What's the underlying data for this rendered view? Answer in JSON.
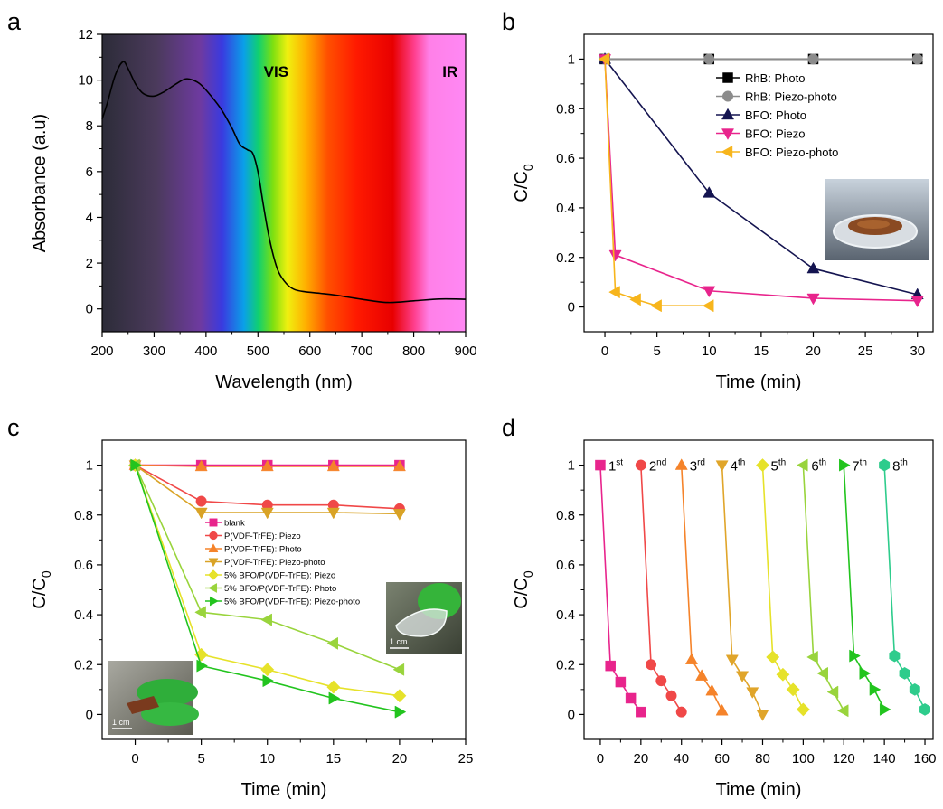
{
  "panel_labels": [
    "a",
    "b",
    "c",
    "d"
  ],
  "chart_data": [
    {
      "id": "a",
      "type": "line",
      "xlabel": "Wavelength (nm)",
      "ylabel": "Absorbance (a.u)",
      "xlim": [
        200,
        900
      ],
      "ylim": [
        -1,
        12
      ],
      "xticks": [
        200,
        300,
        400,
        500,
        600,
        700,
        800,
        900
      ],
      "yticks": [
        0,
        2,
        4,
        6,
        8,
        10,
        12
      ],
      "annotations": [
        "VIS",
        "IR"
      ],
      "background": "visible spectrum color gradient",
      "series": [
        {
          "color": "#000000",
          "x": [
            200,
            210,
            225,
            240,
            250,
            265,
            280,
            300,
            320,
            340,
            360,
            375,
            390,
            410,
            430,
            450,
            465,
            480,
            490,
            500,
            510,
            520,
            530,
            540,
            555,
            570,
            590,
            620,
            650,
            700,
            750,
            800,
            850,
            900
          ],
          "y": [
            8.3,
            9.0,
            10.2,
            10.8,
            10.5,
            9.8,
            9.4,
            9.3,
            9.5,
            9.8,
            10.05,
            10.0,
            9.8,
            9.3,
            8.7,
            7.9,
            7.2,
            6.95,
            6.8,
            6.0,
            4.6,
            3.3,
            2.3,
            1.6,
            1.1,
            0.85,
            0.75,
            0.68,
            0.6,
            0.42,
            0.28,
            0.35,
            0.43,
            0.42
          ]
        }
      ]
    },
    {
      "id": "b",
      "type": "line",
      "xlabel": "Time (min)",
      "ylabel": "C/C0",
      "xlim": [
        -2,
        31.5
      ],
      "ylim": [
        -0.1,
        1.1
      ],
      "xticks": [
        0,
        5,
        10,
        15,
        20,
        25,
        30
      ],
      "yticks": [
        0.0,
        0.2,
        0.4,
        0.6,
        0.8,
        1.0
      ],
      "legend_position": "top-right",
      "series": [
        {
          "name": "RhB: Photo",
          "color": "#000000",
          "marker": "square",
          "x": [
            0,
            10,
            20,
            30
          ],
          "y": [
            1.0,
            1.0,
            1.0,
            1.0
          ]
        },
        {
          "name": "RhB: Piezo-photo",
          "color": "#8c8c8c",
          "marker": "circle",
          "x": [
            0,
            10,
            20,
            30
          ],
          "y": [
            1.0,
            1.0,
            1.0,
            1.0
          ]
        },
        {
          "name": "BFO: Photo",
          "color": "#141450",
          "marker": "triangle-up",
          "x": [
            0,
            10,
            20,
            30
          ],
          "y": [
            1.0,
            0.46,
            0.155,
            0.05
          ]
        },
        {
          "name": "BFO: Piezo",
          "color": "#e8248c",
          "marker": "triangle-down",
          "x": [
            0,
            1,
            10,
            20,
            30
          ],
          "y": [
            1.0,
            0.21,
            0.065,
            0.035,
            0.025
          ]
        },
        {
          "name": "BFO: Piezo-photo",
          "color": "#f7b51c",
          "marker": "triangle-left",
          "x": [
            0,
            1,
            3,
            5,
            10
          ],
          "y": [
            1.0,
            0.06,
            0.03,
            0.005,
            0.005
          ]
        }
      ]
    },
    {
      "id": "c",
      "type": "line",
      "xlabel": "Time (min)",
      "ylabel": "C/C0",
      "xlim": [
        -2.5,
        25
      ],
      "ylim": [
        -0.1,
        1.1
      ],
      "xticks": [
        0,
        5,
        10,
        15,
        20,
        25
      ],
      "yticks": [
        0.0,
        0.2,
        0.4,
        0.6,
        0.8,
        1.0
      ],
      "legend_position": "center",
      "inset_labels": [
        "1 cm",
        "1 cm"
      ],
      "series": [
        {
          "name": "blank",
          "color": "#e8248c",
          "marker": "square",
          "x": [
            0,
            5,
            10,
            15,
            20
          ],
          "y": [
            1.0,
            1.0,
            1.0,
            1.0,
            1.0
          ]
        },
        {
          "name": "P(VDF-TrFE): Piezo",
          "color": "#f04848",
          "marker": "circle",
          "x": [
            0,
            5,
            10,
            15,
            20
          ],
          "y": [
            1.0,
            0.855,
            0.84,
            0.84,
            0.825
          ]
        },
        {
          "name": "P(VDF-TrFE): Photo",
          "color": "#f5832a",
          "marker": "triangle-up",
          "x": [
            0,
            5,
            10,
            15,
            20
          ],
          "y": [
            1.0,
            0.995,
            0.995,
            0.995,
            0.995
          ]
        },
        {
          "name": "P(VDF-TrFE): Piezo-photo",
          "color": "#d9a326",
          "marker": "triangle-down",
          "x": [
            0,
            5,
            10,
            15,
            20
          ],
          "y": [
            1.0,
            0.81,
            0.81,
            0.81,
            0.805
          ]
        },
        {
          "name": "5% BFO/P(VDF-TrFE): Piezo",
          "color": "#e6e22a",
          "marker": "diamond",
          "x": [
            0,
            5,
            10,
            15,
            20
          ],
          "y": [
            1.0,
            0.24,
            0.18,
            0.11,
            0.075
          ]
        },
        {
          "name": "5% BFO/P(VDF-TrFE): Photo",
          "color": "#99d43c",
          "marker": "triangle-left",
          "x": [
            0,
            5,
            10,
            15,
            20
          ],
          "y": [
            1.0,
            0.41,
            0.38,
            0.285,
            0.18
          ]
        },
        {
          "name": "5% BFO/P(VDF-TrFE): Piezo-photo",
          "color": "#22c41e",
          "marker": "triangle-right",
          "x": [
            0,
            5,
            10,
            15,
            20
          ],
          "y": [
            1.0,
            0.195,
            0.135,
            0.065,
            0.01
          ]
        }
      ]
    },
    {
      "id": "d",
      "type": "line",
      "xlabel": "Time (min)",
      "ylabel": "C/C0",
      "xlim": [
        -8,
        164
      ],
      "ylim": [
        -0.1,
        1.1
      ],
      "xticks": [
        0,
        20,
        40,
        60,
        80,
        100,
        120,
        140,
        160
      ],
      "yticks": [
        0.0,
        0.2,
        0.4,
        0.6,
        0.8,
        1.0
      ],
      "series": [
        {
          "name": "1st",
          "color": "#e8248c",
          "marker": "square",
          "x": [
            0,
            5,
            10,
            15,
            20
          ],
          "y": [
            1.0,
            0.195,
            0.13,
            0.065,
            0.01
          ]
        },
        {
          "name": "2nd",
          "color": "#f04848",
          "marker": "circle",
          "x": [
            20,
            25,
            30,
            35,
            40
          ],
          "y": [
            1.0,
            0.2,
            0.135,
            0.075,
            0.01
          ]
        },
        {
          "name": "3rd",
          "color": "#f5832a",
          "marker": "triangle-up",
          "x": [
            40,
            45,
            50,
            55,
            60
          ],
          "y": [
            1.0,
            0.22,
            0.155,
            0.095,
            0.015
          ]
        },
        {
          "name": "4th",
          "color": "#e0a52a",
          "marker": "triangle-down",
          "x": [
            60,
            65,
            70,
            75,
            80
          ],
          "y": [
            1.0,
            0.22,
            0.155,
            0.09,
            0.0
          ]
        },
        {
          "name": "5th",
          "color": "#e6e22a",
          "marker": "diamond",
          "x": [
            80,
            85,
            90,
            95,
            100
          ],
          "y": [
            1.0,
            0.23,
            0.16,
            0.1,
            0.02
          ]
        },
        {
          "name": "6th",
          "color": "#99d43c",
          "marker": "triangle-left",
          "x": [
            100,
            105,
            110,
            115,
            120
          ],
          "y": [
            1.0,
            0.23,
            0.165,
            0.09,
            0.015
          ]
        },
        {
          "name": "7th",
          "color": "#22c41e",
          "marker": "triangle-right",
          "x": [
            120,
            125,
            130,
            135,
            140
          ],
          "y": [
            1.0,
            0.235,
            0.165,
            0.1,
            0.02
          ]
        },
        {
          "name": "8th",
          "color": "#2ecc8c",
          "marker": "hexagon",
          "x": [
            140,
            145,
            150,
            155,
            160
          ],
          "y": [
            1.0,
            0.235,
            0.165,
            0.1,
            0.02
          ]
        }
      ]
    }
  ]
}
